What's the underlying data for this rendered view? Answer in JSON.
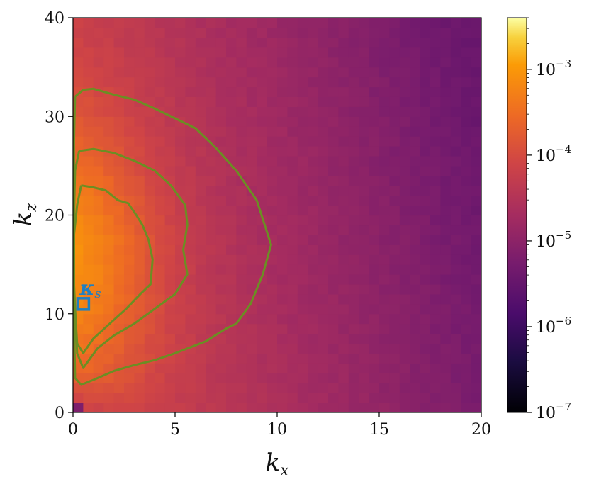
{
  "chart_data": {
    "type": "heatmap",
    "title": "",
    "xlabel": "k",
    "xlabel_sub": "x",
    "ylabel": "k",
    "ylabel_sub": "z",
    "xlim": [
      0,
      20
    ],
    "ylim": [
      0,
      40
    ],
    "x_ticks": [
      0,
      5,
      10,
      15,
      20
    ],
    "y_ticks": [
      0,
      10,
      20,
      30,
      40
    ],
    "grid": false,
    "bins": {
      "nx": 40,
      "nz": 40
    },
    "colorbar": {
      "scale": "log",
      "colormap": "inferno",
      "min": 1e-07,
      "max": 0.004,
      "ticks": [
        {
          "base": "10",
          "exp": "-7",
          "value": 1e-07
        },
        {
          "base": "10",
          "exp": "-6",
          "value": 1e-06
        },
        {
          "base": "10",
          "exp": "-5",
          "value": 1e-05
        },
        {
          "base": "10",
          "exp": "-4",
          "value": 0.0001
        },
        {
          "base": "10",
          "exp": "-3",
          "value": 0.001
        }
      ]
    },
    "contours": [
      {
        "color": "#6b8e23",
        "points": [
          [
            0.1,
            32
          ],
          [
            0.5,
            32.7
          ],
          [
            1,
            32.8
          ],
          [
            2,
            32.2
          ],
          [
            3,
            31.7
          ],
          [
            4,
            30.8
          ],
          [
            5,
            29.8
          ],
          [
            6,
            28.8
          ],
          [
            7,
            26.8
          ],
          [
            8,
            24.5
          ],
          [
            9,
            21.5
          ],
          [
            9.7,
            17
          ],
          [
            9.3,
            14
          ],
          [
            8.7,
            11
          ],
          [
            8,
            9
          ],
          [
            7.5,
            8.5
          ],
          [
            6.5,
            7.2
          ],
          [
            5,
            6
          ],
          [
            4,
            5.3
          ],
          [
            3,
            4.8
          ],
          [
            2,
            4.2
          ],
          [
            1,
            3.3
          ],
          [
            0.4,
            2.8
          ],
          [
            0.1,
            3.5
          ],
          [
            0.05,
            10
          ],
          [
            0.05,
            22
          ],
          [
            0.05,
            27.5
          ],
          [
            0.1,
            32
          ]
        ]
      },
      {
        "color": "#6b8e23",
        "points": [
          [
            0.3,
            26.5
          ],
          [
            1,
            26.7
          ],
          [
            2,
            26.3
          ],
          [
            3,
            25.5
          ],
          [
            4,
            24.5
          ],
          [
            4.8,
            23
          ],
          [
            5.5,
            21
          ],
          [
            5.6,
            19
          ],
          [
            5.4,
            16.5
          ],
          [
            5.6,
            14
          ],
          [
            5,
            12
          ],
          [
            4,
            10.5
          ],
          [
            3,
            9
          ],
          [
            2,
            7.8
          ],
          [
            1.2,
            6.5
          ],
          [
            0.5,
            4.5
          ],
          [
            0.2,
            6
          ],
          [
            0.05,
            13
          ],
          [
            0.05,
            20
          ],
          [
            0.1,
            24.5
          ],
          [
            0.3,
            26.5
          ]
        ]
      },
      {
        "color": "#6b8e23",
        "points": [
          [
            0.4,
            23
          ],
          [
            1,
            22.8
          ],
          [
            1.6,
            22.5
          ],
          [
            2.2,
            21.5
          ],
          [
            2.7,
            21.2
          ],
          [
            3.1,
            20
          ],
          [
            3.4,
            19
          ],
          [
            3.7,
            17.5
          ],
          [
            3.9,
            15.5
          ],
          [
            3.8,
            13
          ],
          [
            3.3,
            12
          ],
          [
            2.6,
            10.5
          ],
          [
            1.8,
            9
          ],
          [
            1,
            7.5
          ],
          [
            0.5,
            6
          ],
          [
            0.2,
            7
          ],
          [
            0.05,
            12
          ],
          [
            0.05,
            18
          ],
          [
            0.2,
            21
          ],
          [
            0.4,
            23
          ]
        ]
      }
    ],
    "annotations": [
      {
        "text": "κ",
        "sub": "s",
        "x": 0.5,
        "y": 11,
        "marker": "square",
        "color": "#1f7fc1"
      }
    ]
  }
}
